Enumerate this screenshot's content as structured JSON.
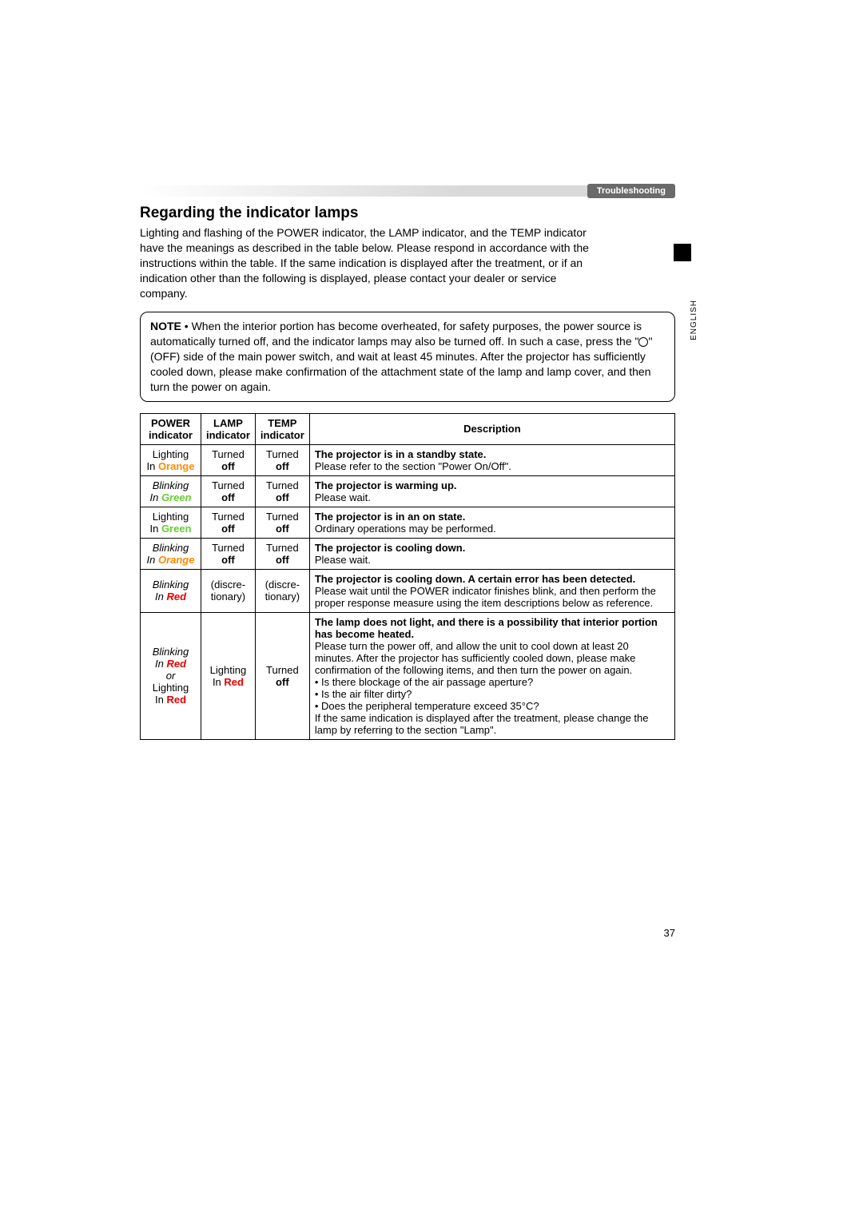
{
  "banner_label": "Troubleshooting",
  "language_label": "ENGLISH",
  "section_title": "Regarding the indicator lamps",
  "intro_text": "Lighting and flashing of the POWER indicator, the LAMP indicator, and the TEMP indicator have the meanings as described in the table below. Please respond in accordance with the instructions within the table. If the same indication is displayed after the treatment, or if an indication other than the following is displayed, please contact your dealer or service company.",
  "note": {
    "label": "NOTE",
    "pre_circle": " • When the interior portion has become overheated, for safety purposes, the power source is automatically turned off, and the indicator lamps may also be turned off. In such a case, press the \"",
    "post_circle": "\" (OFF) side of the main power switch, and wait at least 45 minutes. After the projector has sufficiently cooled down, please make confirmation of the attachment state of the lamp and lamp cover, and then turn the power on again."
  },
  "colors": {
    "orange": "#ff8a00",
    "green": "#66cc33",
    "red": "#e60000"
  },
  "table": {
    "headers": {
      "power_l1": "POWER",
      "power_l2": "indicator",
      "lamp_l1": "LAMP",
      "lamp_l2": "indicator",
      "temp_l1": "TEMP",
      "temp_l2": "indicator",
      "desc": "Description"
    },
    "rows": [
      {
        "power_l1": "Lighting",
        "power_in": "In ",
        "power_color": "Orange",
        "power_color_class": "c-orange",
        "lamp_l1": "Turned",
        "lamp_l2": "off",
        "temp_l1": "Turned",
        "temp_l2": "off",
        "desc_title": "The projector is in a standby state.",
        "desc_body": "Please refer to the section \"Power On/Off\"."
      },
      {
        "power_l1": "Blinking",
        "power_l1_italic": true,
        "power_in": "In ",
        "power_color": "Green",
        "power_color_class": "c-green",
        "lamp_l1": "Turned",
        "lamp_l2": "off",
        "temp_l1": "Turned",
        "temp_l2": "off",
        "desc_title": "The projector is warming up.",
        "desc_body": "Please wait."
      },
      {
        "power_l1": "Lighting",
        "power_in": "In ",
        "power_color": "Green",
        "power_color_class": "c-green",
        "lamp_l1": "Turned",
        "lamp_l2": "off",
        "temp_l1": "Turned",
        "temp_l2": "off",
        "desc_title": "The projector is in an on state.",
        "desc_body": "Ordinary operations may be performed."
      },
      {
        "power_l1": "Blinking",
        "power_l1_italic": true,
        "power_in": "In ",
        "power_color": "Orange",
        "power_color_class": "c-orange",
        "lamp_l1": "Turned",
        "lamp_l2": "off",
        "temp_l1": "Turned",
        "temp_l2": "off",
        "desc_title": "The projector is cooling down.",
        "desc_body": "Please wait."
      },
      {
        "power_l1": "Blinking",
        "power_l1_italic": true,
        "power_in": "In ",
        "power_color": "Red",
        "power_color_class": "c-red",
        "lamp_l1": "(discre-",
        "lamp_l2": "tionary)",
        "temp_l1": "(discre-",
        "temp_l2": "tionary)",
        "desc_title": "The projector is cooling down. A certain error has been detected.",
        "desc_body": "Please wait until the POWER indicator finishes blink, and then perform the proper response measure using the item descriptions below as reference."
      },
      {
        "power_compound": true,
        "p1": "Blinking",
        "p1_italic": true,
        "p2_in": "In ",
        "p2_color": "Red",
        "p2_class": "c-red",
        "p3": "or",
        "p3_italic": true,
        "p4": "Lighting",
        "p5_in": "In ",
        "p5_color": "Red",
        "p5_class": "c-red",
        "lamp_l1": "Lighting",
        "lamp_in": "In ",
        "lamp_color": "Red",
        "lamp_color_class": "c-red",
        "temp_l1": "Turned",
        "temp_l2": "off",
        "desc_title": "The lamp does not light, and there is a possibility that interior portion has become heated.",
        "desc_body": "Please turn the power off, and allow the unit to cool down at least 20 minutes. After the projector has sufficiently cooled down, please make confirmation of the following items, and then turn the power on again.\n• Is there blockage of the air passage aperture?\n• Is the air filter dirty?\n• Does the peripheral temperature exceed 35°C?\nIf the same indication is displayed after the treatment, please change the lamp by referring to the section \"Lamp\"."
      }
    ]
  },
  "page_number": "37"
}
